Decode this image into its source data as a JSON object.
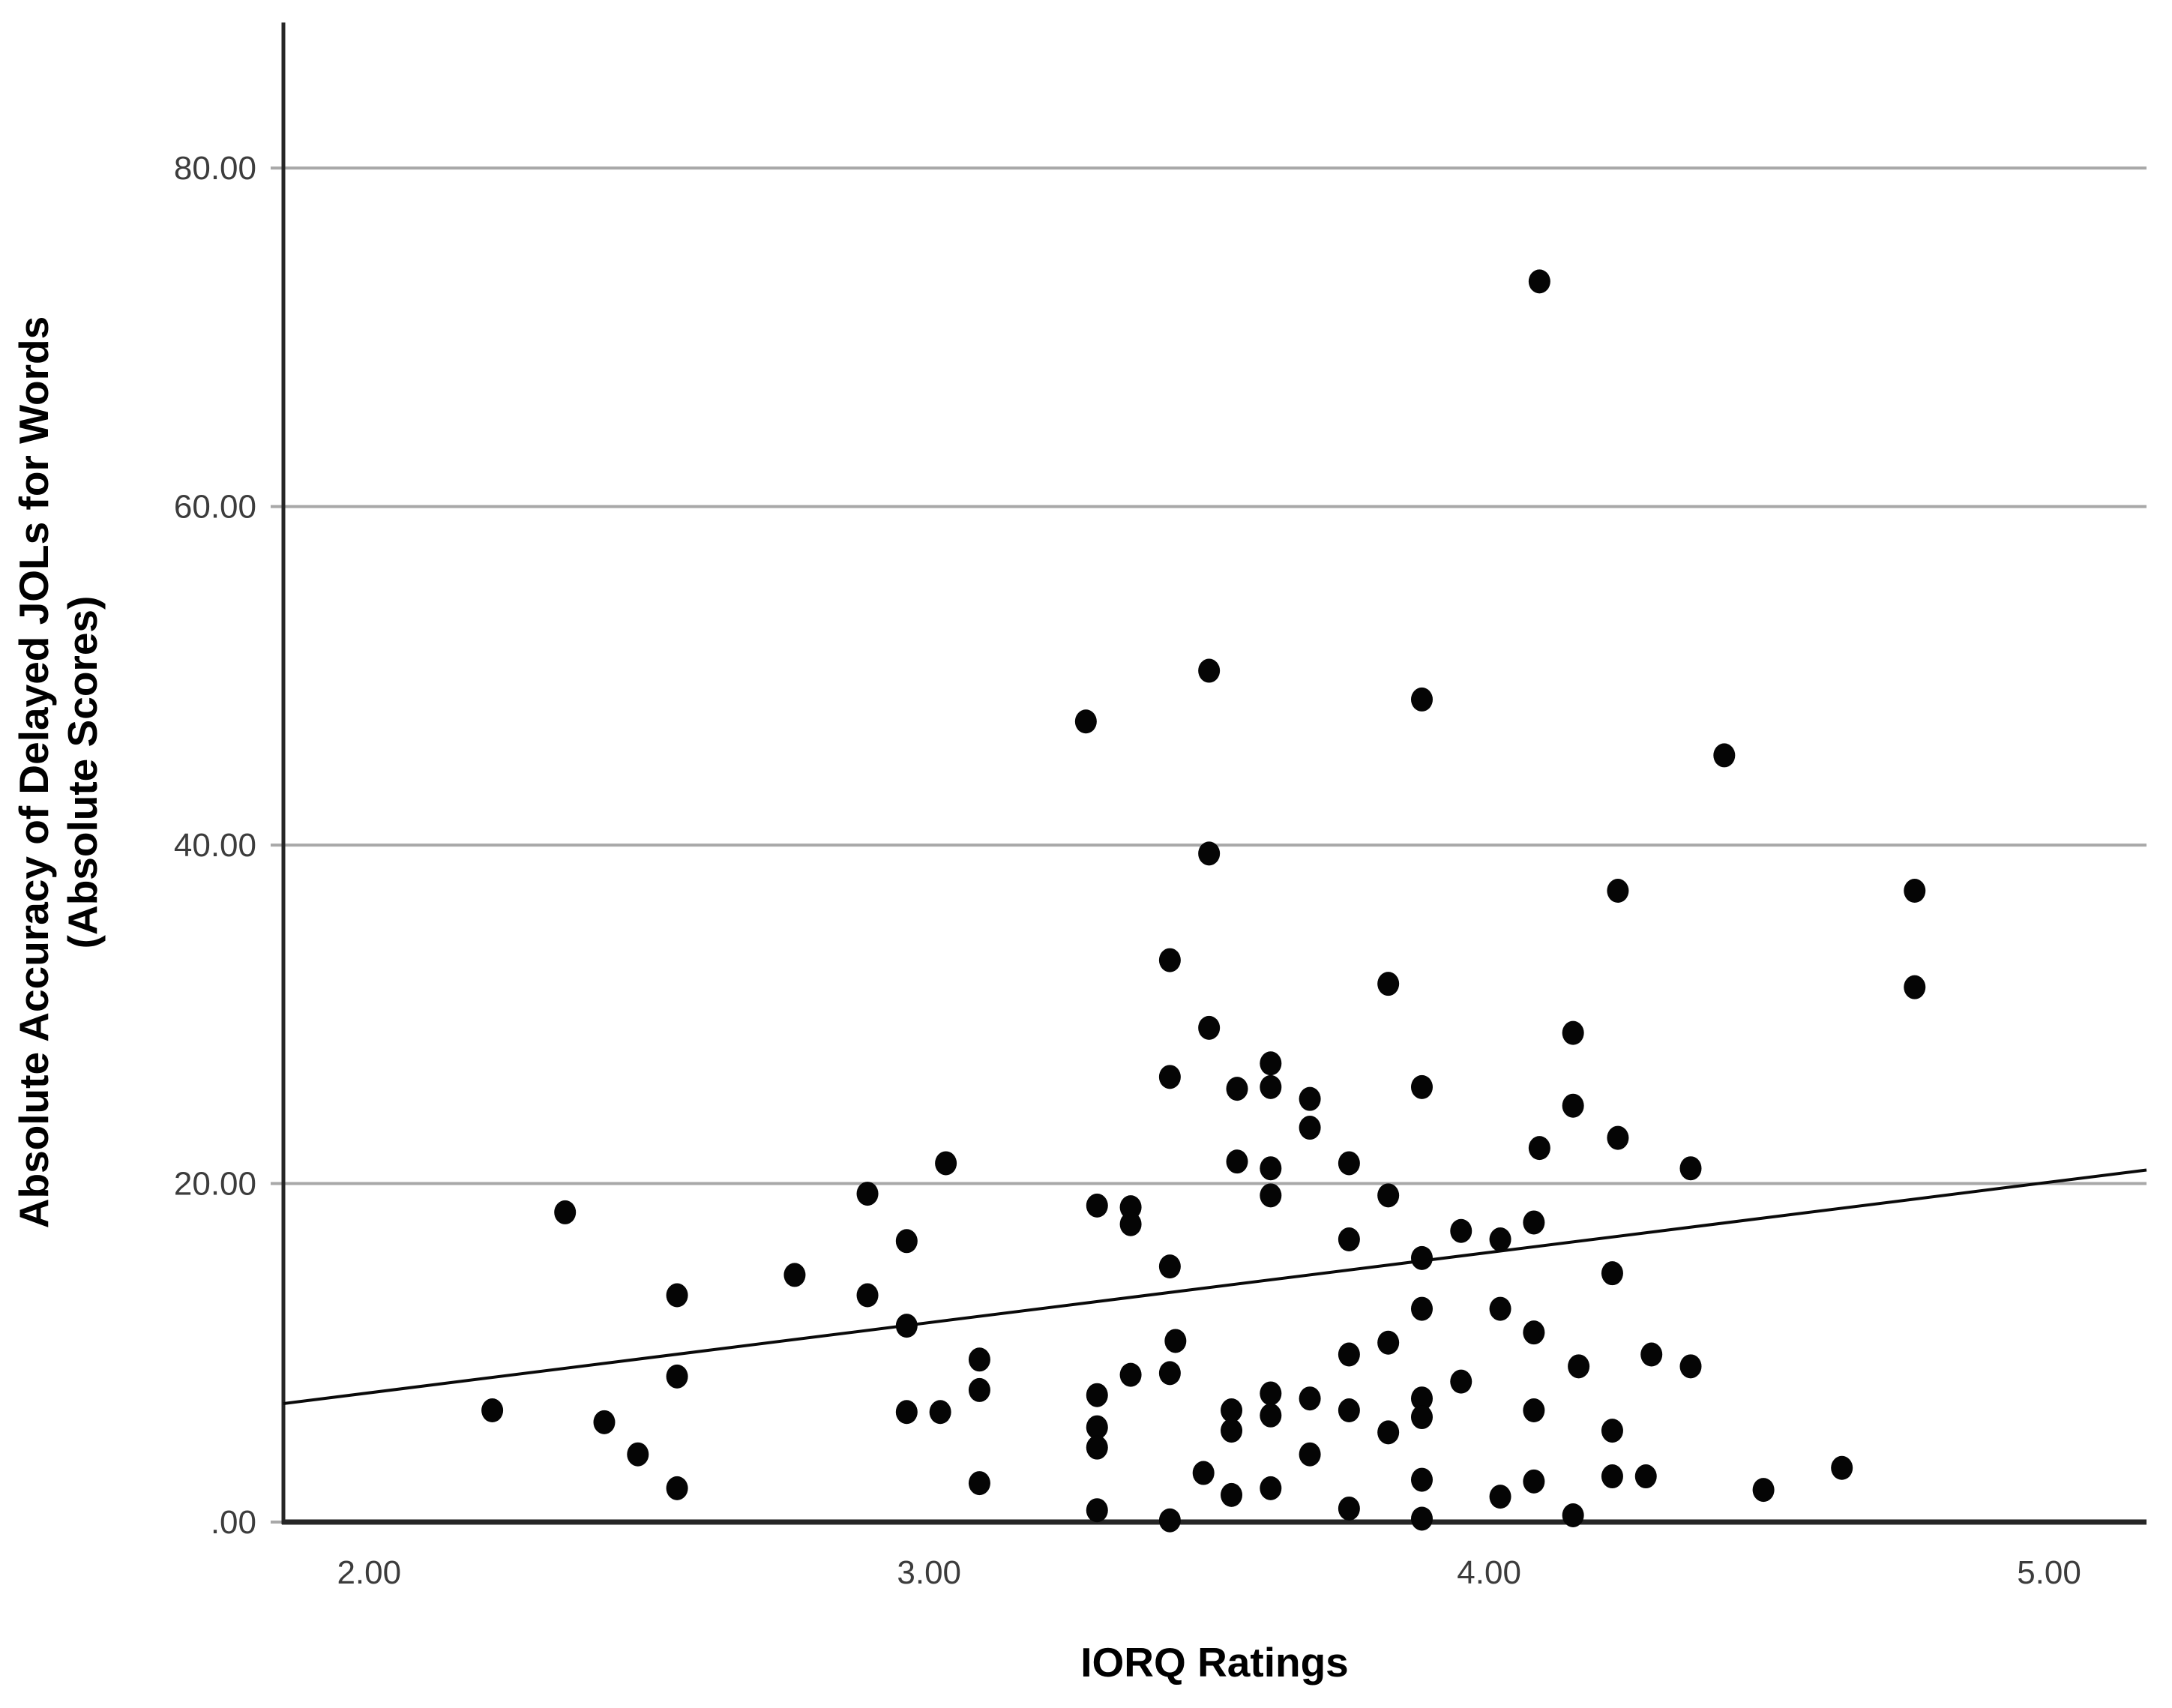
{
  "chart_data": {
    "type": "scatter",
    "title": "",
    "xlabel": "IORQ Ratings",
    "ylabel": "Absolute Accuracy of Delayed JOLs for Words (Absolute Scores)",
    "ylabel_lines": [
      "Absolute Accuracy of Delayed JOLs for Words",
      "(Absolute Scores)"
    ],
    "xlim": [
      1.847,
      5.174
    ],
    "ylim": [
      0,
      88.6
    ],
    "xticks": {
      "values": [
        2,
        3,
        4,
        5
      ],
      "labels": [
        "2.00",
        "3.00",
        "4.00",
        "5.00"
      ]
    },
    "yticks": {
      "values": [
        0,
        20,
        40,
        60,
        80
      ],
      "labels": [
        ".00",
        "20.00",
        "40.00",
        "60.00",
        "80.00"
      ]
    },
    "grid": {
      "horizontal": true,
      "vertical": false
    },
    "legend": {
      "visible": false
    },
    "trend_line": {
      "kind": "linear-fit",
      "x_start": 1.847,
      "y_start": 7.0,
      "x_end": 5.174,
      "y_end": 20.8
    },
    "points": [
      [
        2.22,
        6.6
      ],
      [
        2.35,
        18.3
      ],
      [
        2.42,
        5.9
      ],
      [
        2.48,
        4.0
      ],
      [
        2.55,
        13.4
      ],
      [
        2.55,
        8.6
      ],
      [
        2.55,
        2.0
      ],
      [
        2.76,
        14.6
      ],
      [
        2.89,
        19.4
      ],
      [
        2.89,
        13.4
      ],
      [
        2.96,
        16.6
      ],
      [
        2.96,
        11.6
      ],
      [
        2.96,
        6.5
      ],
      [
        3.02,
        6.5
      ],
      [
        3.03,
        21.2
      ],
      [
        3.09,
        9.6
      ],
      [
        3.09,
        7.8
      ],
      [
        3.09,
        2.3
      ],
      [
        3.28,
        47.3
      ],
      [
        3.3,
        18.7
      ],
      [
        3.3,
        7.5
      ],
      [
        3.3,
        5.6
      ],
      [
        3.3,
        4.4
      ],
      [
        3.3,
        0.7
      ],
      [
        3.36,
        18.6
      ],
      [
        3.36,
        17.6
      ],
      [
        3.36,
        8.7
      ],
      [
        3.43,
        33.2
      ],
      [
        3.43,
        26.3
      ],
      [
        3.43,
        15.1
      ],
      [
        3.43,
        8.8
      ],
      [
        3.43,
        0.1
      ],
      [
        3.44,
        10.7
      ],
      [
        3.49,
        2.9
      ],
      [
        3.5,
        50.3
      ],
      [
        3.5,
        39.5
      ],
      [
        3.5,
        29.2
      ],
      [
        3.54,
        6.6
      ],
      [
        3.54,
        5.4
      ],
      [
        3.54,
        1.6
      ],
      [
        3.55,
        25.6
      ],
      [
        3.55,
        21.3
      ],
      [
        3.61,
        27.1
      ],
      [
        3.61,
        25.7
      ],
      [
        3.61,
        20.9
      ],
      [
        3.61,
        19.3
      ],
      [
        3.61,
        7.6
      ],
      [
        3.61,
        6.3
      ],
      [
        3.61,
        2.0
      ],
      [
        3.68,
        25.0
      ],
      [
        3.68,
        23.3
      ],
      [
        3.68,
        7.3
      ],
      [
        3.68,
        4.0
      ],
      [
        3.75,
        21.2
      ],
      [
        3.75,
        16.7
      ],
      [
        3.75,
        9.9
      ],
      [
        3.75,
        6.6
      ],
      [
        3.75,
        0.8
      ],
      [
        3.82,
        31.8
      ],
      [
        3.82,
        19.3
      ],
      [
        3.82,
        10.6
      ],
      [
        3.82,
        5.3
      ],
      [
        3.88,
        48.6
      ],
      [
        3.88,
        25.7
      ],
      [
        3.88,
        15.6
      ],
      [
        3.88,
        12.6
      ],
      [
        3.88,
        7.3
      ],
      [
        3.88,
        6.2
      ],
      [
        3.88,
        2.5
      ],
      [
        3.88,
        0.2
      ],
      [
        3.95,
        17.2
      ],
      [
        3.95,
        8.3
      ],
      [
        4.02,
        16.7
      ],
      [
        4.02,
        12.6
      ],
      [
        4.02,
        1.5
      ],
      [
        4.08,
        17.7
      ],
      [
        4.08,
        11.2
      ],
      [
        4.08,
        6.6
      ],
      [
        4.08,
        2.4
      ],
      [
        4.09,
        73.3
      ],
      [
        4.09,
        22.1
      ],
      [
        4.15,
        28.9
      ],
      [
        4.15,
        24.6
      ],
      [
        4.15,
        0.4
      ],
      [
        4.16,
        9.2
      ],
      [
        4.22,
        14.7
      ],
      [
        4.22,
        5.4
      ],
      [
        4.22,
        2.7
      ],
      [
        4.23,
        37.3
      ],
      [
        4.23,
        22.7
      ],
      [
        4.28,
        2.7
      ],
      [
        4.29,
        9.9
      ],
      [
        4.36,
        20.9
      ],
      [
        4.36,
        9.2
      ],
      [
        4.42,
        45.3
      ],
      [
        4.49,
        1.9
      ],
      [
        4.63,
        3.2
      ],
      [
        4.76,
        37.3
      ],
      [
        4.76,
        31.6
      ]
    ]
  },
  "colors": {
    "background": "#ffffff",
    "point": "#050505",
    "gridline": "#a8a8a8",
    "axis": "#262626",
    "tick_label": "#3c3c3c",
    "trend_line": "#0a0a0a"
  }
}
